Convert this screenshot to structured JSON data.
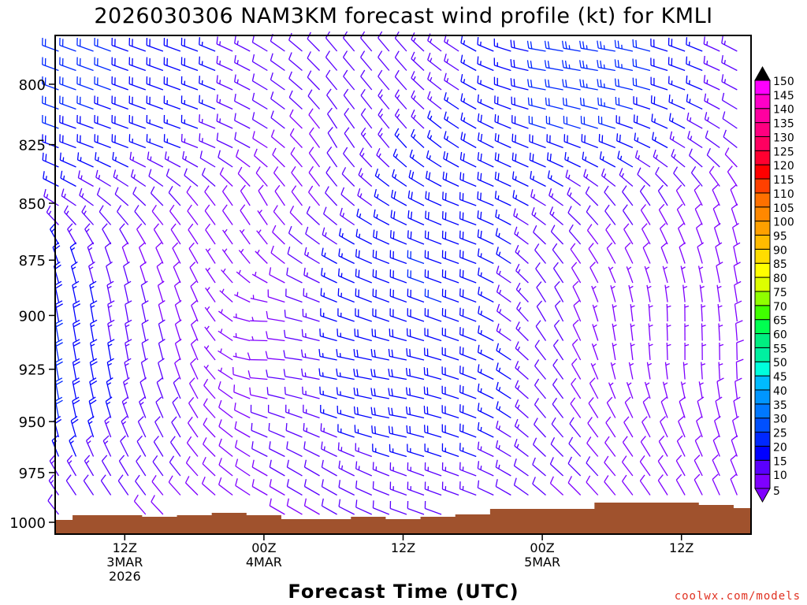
{
  "chart_data": {
    "type": "wind-barb time-height",
    "title": "2026030306 NAM3KM forecast wind profile (kt) for KMLI",
    "xlabel": "Forecast Time (UTC)",
    "ylabel": "",
    "credit": "coolwx.com/models",
    "x_range_hours": [
      0,
      60
    ],
    "y_range_hpa": [
      780,
      1006
    ],
    "y_scale": "log",
    "y_ticks": [
      800,
      825,
      850,
      875,
      900,
      925,
      950,
      975,
      1000
    ],
    "y_tick_labels": [
      "800",
      "825",
      "850",
      "875",
      "900",
      "925",
      "950",
      "975",
      "1000"
    ],
    "x_ticks": [
      {
        "hour": 6,
        "lines": [
          "12Z",
          "3MAR",
          "2026"
        ]
      },
      {
        "hour": 18,
        "lines": [
          "00Z",
          "4MAR"
        ]
      },
      {
        "hour": 30,
        "lines": [
          "12Z"
        ]
      },
      {
        "hour": 42,
        "lines": [
          "00Z",
          "5MAR"
        ]
      },
      {
        "hour": 54,
        "lines": [
          "12Z"
        ]
      }
    ],
    "wind_grid": {
      "hours": [
        0,
        6,
        12,
        18,
        24,
        30,
        36,
        42,
        48,
        54,
        60
      ],
      "levels_hpa": [
        800,
        825,
        850,
        875,
        900,
        925,
        950,
        975,
        1000
      ],
      "speed_kt": [
        [
          22,
          20,
          18,
          12,
          10,
          12,
          15,
          20,
          25,
          18,
          12
        ],
        [
          20,
          18,
          15,
          10,
          10,
          15,
          18,
          20,
          20,
          15,
          10
        ],
        [
          15,
          12,
          10,
          8,
          10,
          18,
          20,
          15,
          12,
          10,
          8
        ],
        [
          18,
          10,
          8,
          6,
          15,
          20,
          20,
          12,
          8,
          8,
          8
        ],
        [
          20,
          12,
          8,
          6,
          15,
          20,
          20,
          12,
          6,
          6,
          8
        ],
        [
          22,
          14,
          8,
          8,
          15,
          20,
          20,
          12,
          6,
          6,
          8
        ],
        [
          22,
          14,
          10,
          10,
          15,
          20,
          20,
          12,
          8,
          8,
          8
        ],
        [
          15,
          12,
          10,
          10,
          12,
          15,
          15,
          12,
          10,
          8,
          8
        ],
        [
          10,
          10,
          8,
          8,
          10,
          10,
          10,
          8,
          8,
          8,
          8
        ]
      ],
      "direction_deg": [
        [
          290,
          290,
          290,
          300,
          320,
          320,
          300,
          280,
          280,
          290,
          300
        ],
        [
          290,
          290,
          290,
          300,
          330,
          320,
          300,
          290,
          290,
          300,
          310
        ],
        [
          300,
          310,
          320,
          330,
          320,
          300,
          290,
          300,
          320,
          330,
          340
        ],
        [
          340,
          340,
          330,
          320,
          300,
          290,
          290,
          320,
          330,
          340,
          350
        ],
        [
          350,
          350,
          340,
          270,
          290,
          290,
          290,
          330,
          350,
          0,
          350
        ],
        [
          350,
          350,
          340,
          270,
          280,
          280,
          290,
          320,
          350,
          0,
          0
        ],
        [
          350,
          340,
          330,
          290,
          290,
          280,
          290,
          320,
          330,
          340,
          350
        ],
        [
          330,
          330,
          320,
          300,
          300,
          290,
          290,
          310,
          320,
          330,
          340
        ],
        [
          320,
          320,
          310,
          300,
          300,
          290,
          290,
          310,
          320,
          330,
          340
        ]
      ]
    },
    "surface_pressure": {
      "hours": [
        0,
        3,
        6,
        9,
        12,
        15,
        18,
        21,
        24,
        27,
        30,
        33,
        36,
        39,
        42,
        45,
        48,
        51,
        54,
        57,
        60
      ],
      "hpa": [
        998.8,
        996.4,
        996.4,
        997.2,
        996.4,
        995.2,
        996.4,
        998.4,
        998.4,
        997.2,
        998.4,
        997.2,
        996.0,
        993.2,
        993.2,
        993.2,
        990.0,
        990.0,
        990.0,
        991.2,
        992.8
      ],
      "color": "#a0522d"
    },
    "colorbar": {
      "labels": [
        "5",
        "10",
        "15",
        "20",
        "25",
        "30",
        "35",
        "40",
        "45",
        "50",
        "55",
        "60",
        "65",
        "70",
        "75",
        "80",
        "85",
        "90",
        "95",
        "100",
        "105",
        "110",
        "115",
        "120",
        "125",
        "130",
        "135",
        "140",
        "145",
        "150"
      ],
      "colors": [
        "#7f00ff",
        "#5a00ff",
        "#0000ff",
        "#0028ff",
        "#0050ff",
        "#0078ff",
        "#0096ff",
        "#00bbff",
        "#00ffdd",
        "#00f0a0",
        "#00ee80",
        "#00ff50",
        "#40ff00",
        "#90ff00",
        "#ddff00",
        "#ffff00",
        "#ffdd00",
        "#ffbb00",
        "#ffa000",
        "#ff8800",
        "#ff7000",
        "#ff4000",
        "#ff0000",
        "#ff0030",
        "#ff0060",
        "#ff0080",
        "#ff00a0",
        "#ff00c8",
        "#ff00ff"
      ],
      "under_color": "#8000ff",
      "over_color": "#000000"
    }
  }
}
